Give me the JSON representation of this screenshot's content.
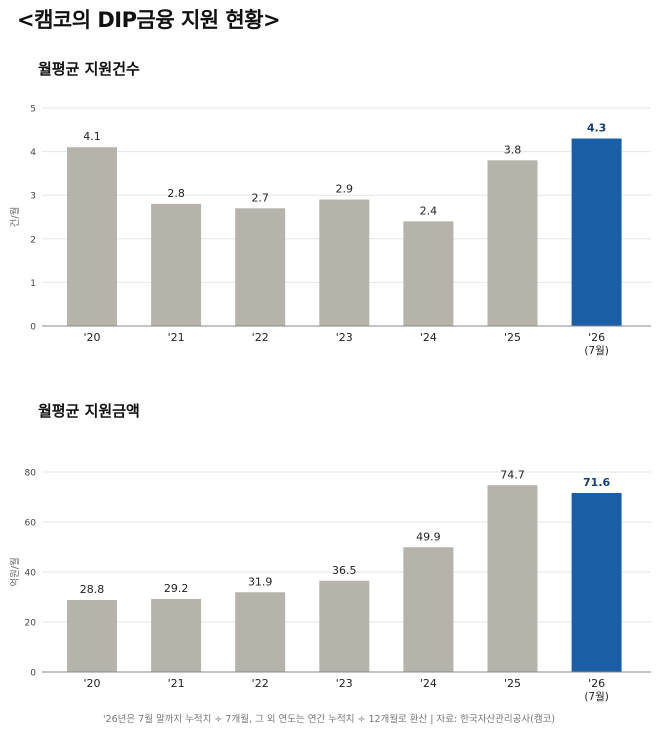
{
  "main_title": "<캠코의 DIP금융 지원 현황>",
  "footnote": "'26년은 7월 말까지 누적치 ÷ 7개월, 그 외 연도는 연간 누적치 ÷ 12개월로 환산 | 자료: 한국자산관리공사(캠코)",
  "colors": {
    "bar": "#b5b3aa",
    "highlight": "#1a5ea6",
    "highlight_label": "#173f6f",
    "grid": "#e6e6e6",
    "axis": "#888888"
  },
  "chart_data": [
    {
      "type": "bar",
      "title": "월평균 지원건수",
      "ylabel": "건/월",
      "ylim": [
        0,
        5
      ],
      "yticks": [
        "0",
        "1",
        "2",
        "3",
        "4",
        "5"
      ],
      "categories": [
        "'20",
        "'21",
        "'22",
        "'23",
        "'24",
        "'25",
        "'26"
      ],
      "category_sublabels": [
        "",
        "",
        "",
        "",
        "",
        "",
        "(7월)"
      ],
      "values": [
        4.1,
        2.8,
        2.7,
        2.9,
        2.4,
        3.8,
        4.3
      ],
      "value_labels": [
        "4.1",
        "2.8",
        "2.7",
        "2.9",
        "2.4",
        "3.8",
        "4.3"
      ],
      "highlight_index": 6,
      "grid": true
    },
    {
      "type": "bar",
      "title": "월평균 지원금액",
      "ylabel": "억원/월",
      "ylim": [
        0,
        80
      ],
      "yticks": [
        "0",
        "20",
        "40",
        "60",
        "80"
      ],
      "categories": [
        "'20",
        "'21",
        "'22",
        "'23",
        "'24",
        "'25",
        "'26"
      ],
      "category_sublabels": [
        "",
        "",
        "",
        "",
        "",
        "",
        "(7월)"
      ],
      "values": [
        28.8,
        29.2,
        31.9,
        36.5,
        49.9,
        74.7,
        71.6
      ],
      "value_labels": [
        "28.8",
        "29.2",
        "31.9",
        "36.5",
        "49.9",
        "74.7",
        "71.6"
      ],
      "highlight_index": 6,
      "grid": true
    }
  ]
}
